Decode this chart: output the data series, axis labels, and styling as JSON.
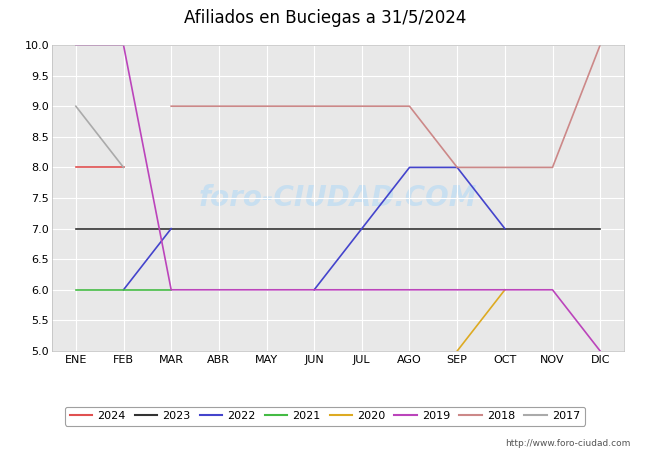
{
  "title": "Afiliados en Buciegas a 31/5/2024",
  "ylim": [
    5.0,
    10.0
  ],
  "yticks": [
    5.0,
    5.5,
    6.0,
    6.5,
    7.0,
    7.5,
    8.0,
    8.5,
    9.0,
    9.5,
    10.0
  ],
  "months": [
    "ENE",
    "FEB",
    "MAR",
    "ABR",
    "MAY",
    "JUN",
    "JUL",
    "AGO",
    "SEP",
    "OCT",
    "NOV",
    "DIC"
  ],
  "url": "http://www.foro-ciudad.com",
  "header_color": "#5aafd6",
  "bg_color": "#e8e8e8",
  "plot_bg": "#e8e8e8",
  "grid_color": "#ffffff",
  "watermark_color": "#c8dff0",
  "series_data": {
    "2024": [
      8,
      8,
      null,
      null,
      null,
      null,
      null,
      null,
      null,
      null,
      null,
      null
    ],
    "2023": [
      7,
      7,
      7,
      7,
      7,
      7,
      7,
      7,
      7,
      7,
      7,
      7
    ],
    "2022": [
      null,
      6,
      7,
      null,
      null,
      6,
      7,
      8,
      8,
      7,
      null,
      7
    ],
    "2021": [
      6,
      6,
      6,
      null,
      null,
      null,
      null,
      null,
      null,
      null,
      null,
      null
    ],
    "2020": [
      null,
      null,
      null,
      null,
      null,
      null,
      null,
      null,
      5,
      6,
      null,
      null
    ],
    "2019": [
      10,
      10,
      6,
      6,
      6,
      6,
      6,
      6,
      6,
      6,
      6,
      5
    ],
    "2018": [
      null,
      null,
      9,
      9,
      9,
      9,
      9,
      9,
      8,
      8,
      8,
      10
    ],
    "2017": [
      9,
      8,
      null,
      null,
      null,
      null,
      null,
      null,
      null,
      null,
      null,
      null
    ]
  },
  "series_colors": {
    "2024": "#e05050",
    "2023": "#333333",
    "2022": "#4444cc",
    "2021": "#44bb44",
    "2020": "#ddaa22",
    "2019": "#bb44bb",
    "2018": "#cc8888",
    "2017": "#aaaaaa"
  },
  "legend_order": [
    "2024",
    "2023",
    "2022",
    "2021",
    "2020",
    "2019",
    "2018",
    "2017"
  ]
}
